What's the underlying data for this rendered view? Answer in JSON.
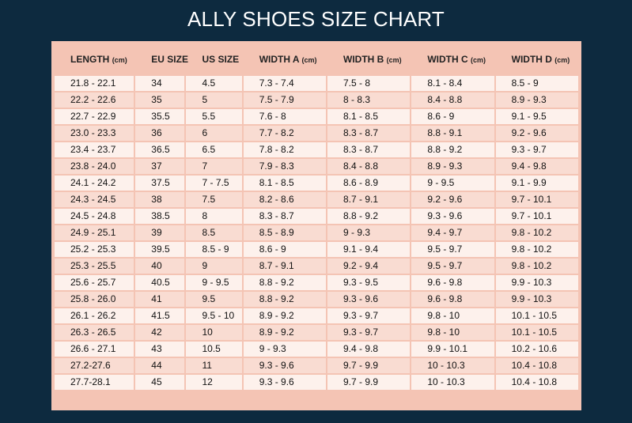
{
  "title": "ALLY SHOES SIZE CHART",
  "columns": [
    {
      "label": "LENGTH",
      "unit": "(cm)"
    },
    {
      "label": "EU SIZE",
      "unit": ""
    },
    {
      "label": "US SIZE",
      "unit": ""
    },
    {
      "label": "WIDTH A",
      "unit": "(cm)"
    },
    {
      "label": "WIDTH B",
      "unit": "(cm)"
    },
    {
      "label": "WIDTH C",
      "unit": "(cm)"
    },
    {
      "label": "WIDTH D",
      "unit": "(cm)"
    }
  ],
  "rows": [
    [
      "21.8 - 22.1",
      "34",
      "4.5",
      "7.3 - 7.4",
      "7.5 - 8",
      "8.1 - 8.4",
      "8.5 - 9"
    ],
    [
      "22.2 - 22.6",
      "35",
      "5",
      "7.5 - 7.9",
      "8 - 8.3",
      "8.4 - 8.8",
      "8.9 - 9.3"
    ],
    [
      "22.7 - 22.9",
      "35.5",
      "5.5",
      "7.6 - 8",
      "8.1 - 8.5",
      "8.6 - 9",
      "9.1 - 9.5"
    ],
    [
      "23.0 - 23.3",
      "36",
      "6",
      "7.7 - 8.2",
      "8.3 - 8.7",
      "8.8 - 9.1",
      "9.2 - 9.6"
    ],
    [
      "23.4 - 23.7",
      "36.5",
      "6.5",
      "7.8 - 8.2",
      "8.3 - 8.7",
      "8.8 - 9.2",
      "9.3 - 9.7"
    ],
    [
      "23.8 - 24.0",
      "37",
      "7",
      "7.9 - 8.3",
      "8.4 - 8.8",
      "8.9 - 9.3",
      "9.4 - 9.8"
    ],
    [
      "24.1 - 24.2",
      "37.5",
      "7 - 7.5",
      "8.1 - 8.5",
      "8.6 - 8.9",
      "9 - 9.5",
      "9.1 - 9.9"
    ],
    [
      "24.3 - 24.5",
      "38",
      "7.5",
      "8.2 - 8.6",
      "8.7 - 9.1",
      "9.2 - 9.6",
      "9.7 - 10.1"
    ],
    [
      "24.5 - 24.8",
      "38.5",
      "8",
      "8.3 - 8.7",
      "8.8 - 9.2",
      "9.3 - 9.6",
      "9.7 - 10.1"
    ],
    [
      "24.9 - 25.1",
      "39",
      "8.5",
      "8.5 - 8.9",
      "9 - 9.3",
      "9.4 - 9.7",
      "9.8 - 10.2"
    ],
    [
      "25.2 - 25.3",
      "39.5",
      "8.5 - 9",
      "8.6 - 9",
      "9.1 - 9.4",
      "9.5 - 9.7",
      "9.8 - 10.2"
    ],
    [
      "25.3 - 25.5",
      "40",
      "9",
      "8.7 - 9.1",
      "9.2 - 9.4",
      "9.5 - 9.7",
      "9.8 - 10.2"
    ],
    [
      "25.6 - 25.7",
      "40.5",
      "9 - 9.5",
      "8.8 - 9.2",
      "9.3 - 9.5",
      "9.6 - 9.8",
      "9.9 - 10.3"
    ],
    [
      "25.8 - 26.0",
      "41",
      "9.5",
      "8.8 - 9.2",
      "9.3 - 9.6",
      "9.6 - 9.8",
      "9.9 - 10.3"
    ],
    [
      "26.1 - 26.2",
      "41.5",
      "9.5 - 10",
      "8.9 - 9.2",
      "9.3 - 9.7",
      "9.8 - 10",
      "10.1 - 10.5"
    ],
    [
      "26.3 - 26.5",
      "42",
      "10",
      "8.9 - 9.2",
      "9.3 - 9.7",
      "9.8 - 10",
      "10.1 - 10.5"
    ],
    [
      "26.6 - 27.1",
      "43",
      "10.5",
      "9 - 9.3",
      "9.4 - 9.8",
      "9.9 - 10.1",
      "10.2 - 10.6"
    ],
    [
      "27.2-27.6",
      "44",
      "11",
      "9.3 - 9.6",
      "9.7 - 9.9",
      "10 - 10.3",
      "10.4 - 10.8"
    ],
    [
      "27.7-28.1",
      "45",
      "12",
      "9.3 - 9.6",
      "9.7 - 9.9",
      "10 - 10.3",
      "10.4 - 10.8"
    ]
  ]
}
